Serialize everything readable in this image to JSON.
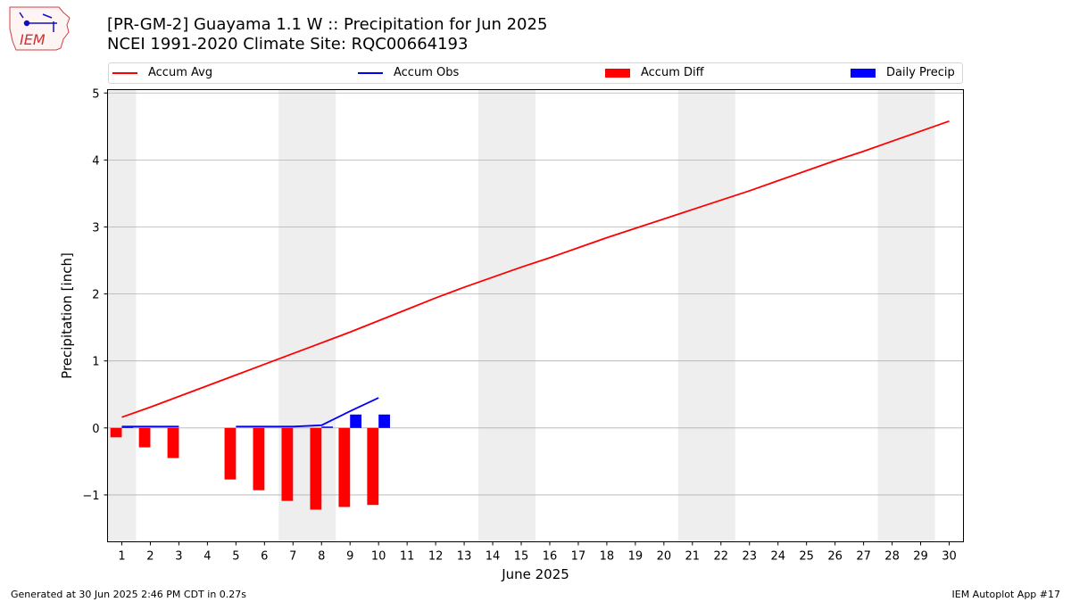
{
  "header": {
    "title_line1": "[PR-GM-2] Guayama 1.1 W :: Precipitation for Jun 2025",
    "title_line2": "NCEI 1991-2020 Climate Site: RQC00664193",
    "logo_text": "IEM"
  },
  "footer": {
    "generated": "Generated at 30 Jun 2025 2:46 PM CDT in 0.27s",
    "app": "IEM Autoplot App #17"
  },
  "colors": {
    "avg": "#ff0000",
    "obs": "#0000ff",
    "diff": "#ff0000",
    "daily": "#0000ff",
    "weekend_shade": "#eeeeee",
    "grid": "#b0b0b0"
  },
  "chart_data": {
    "type": "bar",
    "xlabel": "June 2025",
    "ylabel": "Precipitation [inch]",
    "xlim": [
      0.5,
      30.5
    ],
    "ylim": [
      -1.7,
      5.05
    ],
    "yticks": [
      -1,
      0,
      1,
      2,
      3,
      4,
      5
    ],
    "ytick_labels": [
      "−1",
      "0",
      "1",
      "2",
      "3",
      "4",
      "5"
    ],
    "days": [
      1,
      2,
      3,
      4,
      5,
      6,
      7,
      8,
      9,
      10,
      11,
      12,
      13,
      14,
      15,
      16,
      17,
      18,
      19,
      20,
      21,
      22,
      23,
      24,
      25,
      26,
      27,
      28,
      29,
      30
    ],
    "grid": true,
    "legend_position": "top",
    "shaded_days": [
      [
        1,
        1
      ],
      [
        7,
        8
      ],
      [
        14,
        15
      ],
      [
        21,
        22
      ],
      [
        28,
        29
      ]
    ],
    "legend": [
      "Accum Avg",
      "Accum Obs",
      "Accum Diff",
      "Daily Precip"
    ],
    "series": [
      {
        "name": "Accum Avg",
        "kind": "line",
        "x": [
          1,
          2,
          3,
          4,
          5,
          6,
          7,
          8,
          9,
          10,
          11,
          12,
          13,
          14,
          15,
          16,
          17,
          18,
          19,
          20,
          21,
          22,
          23,
          24,
          25,
          26,
          27,
          28,
          29,
          30
        ],
        "values": [
          0.16,
          0.31,
          0.47,
          0.63,
          0.79,
          0.95,
          1.11,
          1.27,
          1.43,
          1.6,
          1.77,
          1.94,
          2.1,
          2.25,
          2.4,
          2.54,
          2.69,
          2.84,
          2.98,
          3.12,
          3.26,
          3.4,
          3.54,
          3.69,
          3.84,
          3.99,
          4.13,
          4.28,
          4.43,
          4.58
        ]
      },
      {
        "name": "Accum Obs",
        "kind": "line",
        "segments": [
          {
            "x": [
              1,
              2,
              3
            ],
            "values": [
              0.02,
              0.02,
              0.02
            ]
          },
          {
            "x": [
              5,
              6,
              7,
              8,
              9,
              10
            ],
            "values": [
              0.02,
              0.02,
              0.02,
              0.04,
              0.25,
              0.45
            ]
          }
        ]
      },
      {
        "name": "Accum Diff",
        "kind": "bar",
        "x": [
          1,
          2,
          3,
          5,
          6,
          7,
          8,
          9,
          10
        ],
        "values": [
          -0.14,
          -0.29,
          -0.45,
          -0.77,
          -0.93,
          -1.09,
          -1.22,
          -1.18,
          -1.15
        ]
      },
      {
        "name": "Daily Precip",
        "kind": "bar",
        "x": [
          1,
          2,
          3,
          5,
          6,
          7,
          8,
          9,
          10
        ],
        "values": [
          0.02,
          0,
          0,
          0,
          0,
          0,
          0.02,
          0.2,
          0.2
        ]
      }
    ]
  }
}
